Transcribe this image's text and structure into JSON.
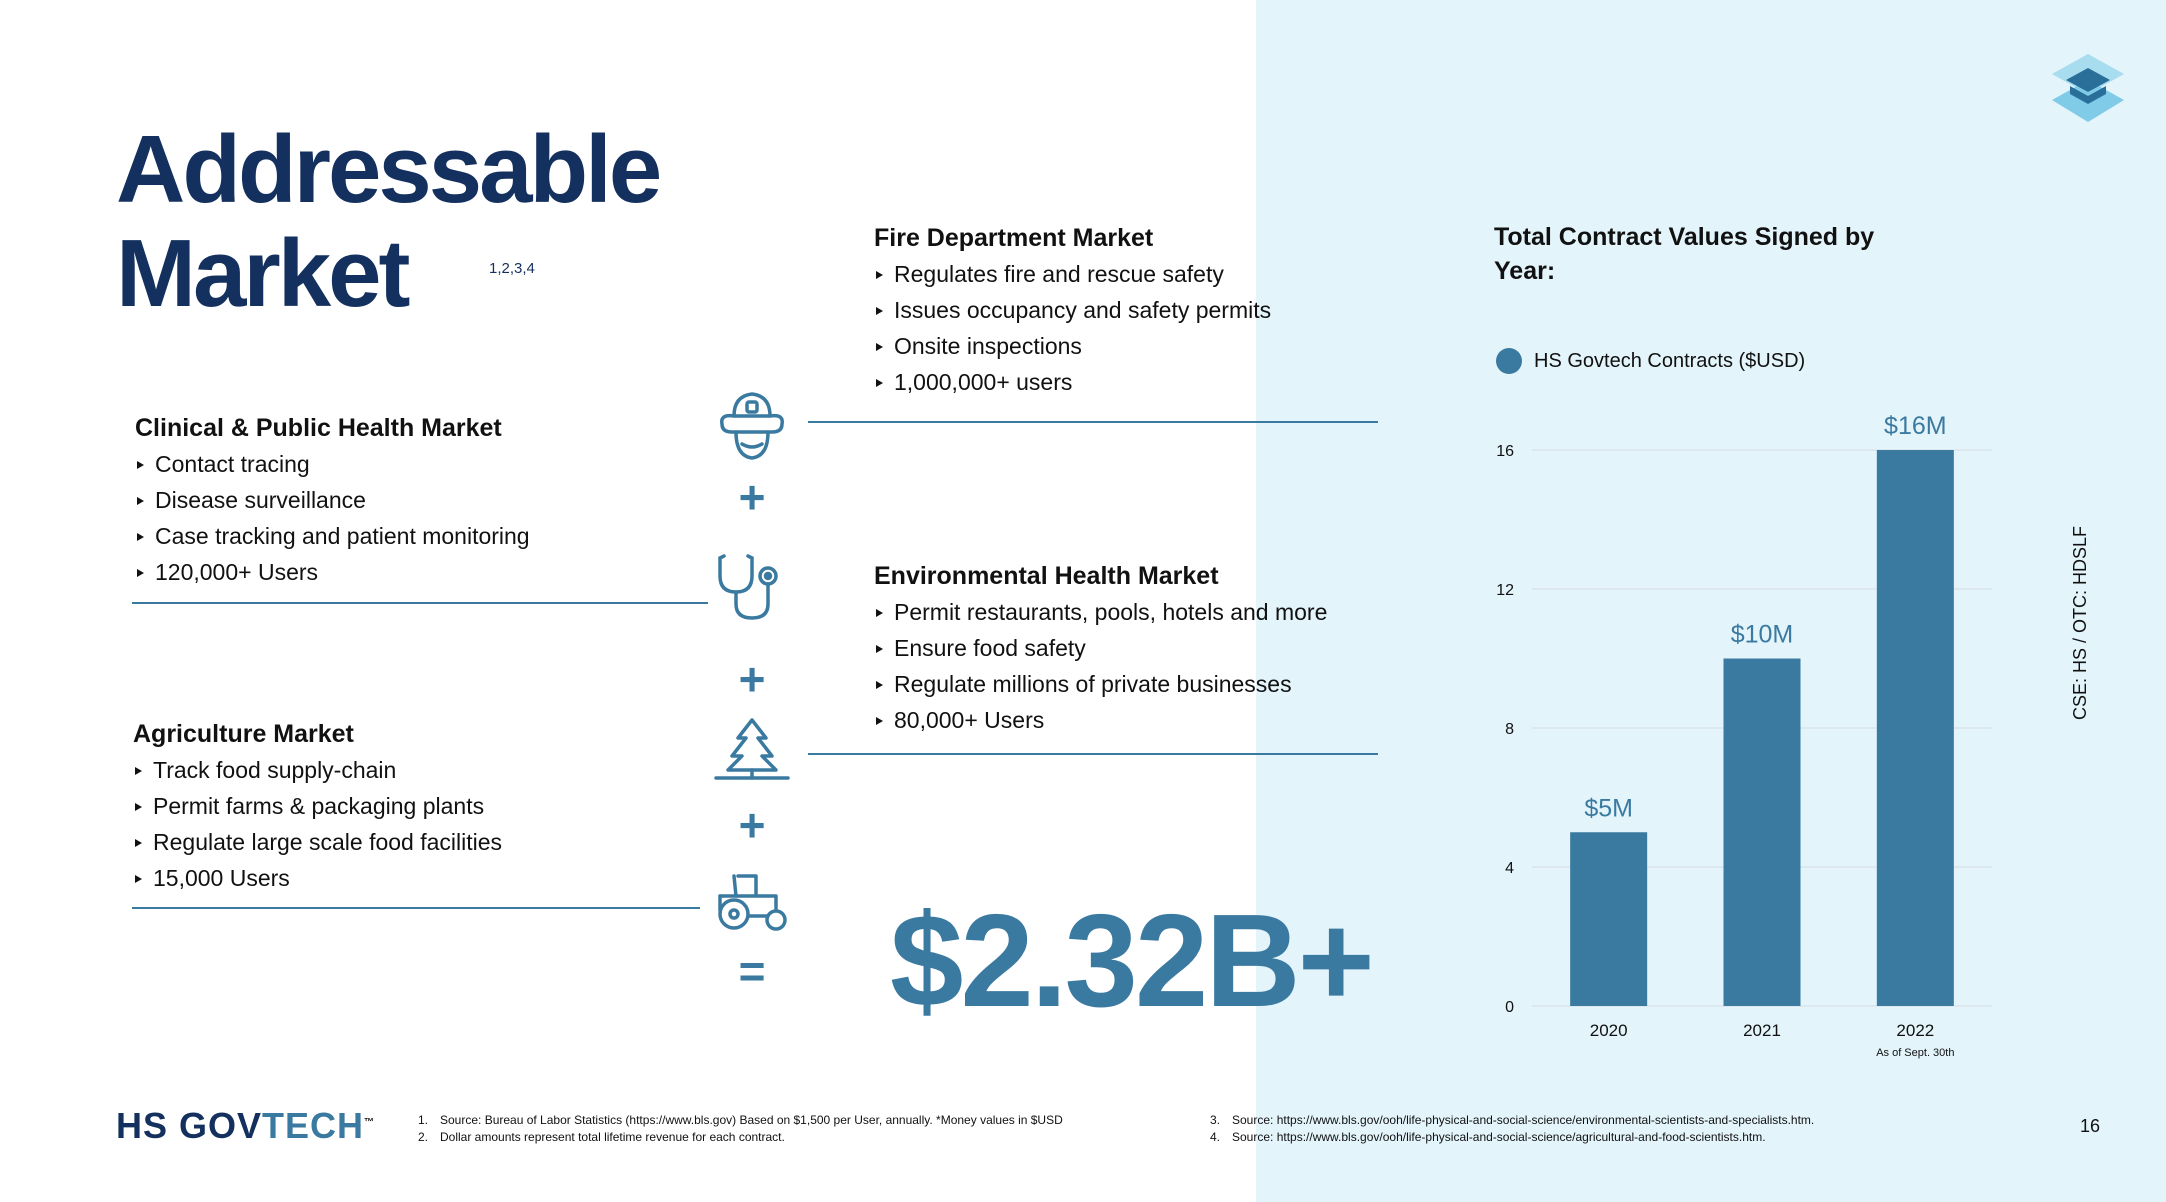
{
  "title": {
    "line1": "Addressable",
    "line2": "Market",
    "sup": "1,2,3,4"
  },
  "markets": {
    "clinical": {
      "heading": "Clinical & Public Health Market",
      "items": [
        "Contact tracing",
        "Disease surveillance",
        "Case tracking and patient  monitoring",
        "120,000+ Users"
      ]
    },
    "agriculture": {
      "heading": "Agriculture Market",
      "items": [
        "Track food supply-chain",
        "Permit farms & packaging plants",
        "Regulate large scale food facilities",
        "15,000 Users"
      ]
    },
    "fire": {
      "heading": "Fire Department Market",
      "items": [
        "Regulates fire and rescue safety",
        "Issues occupancy and safety permits",
        "Onsite inspections",
        "1,000,000+ users"
      ]
    },
    "environmental": {
      "heading": "Environmental Health Market",
      "items": [
        "Permit restaurants, pools, hotels and more",
        "Ensure food safety",
        "Regulate millions of private businesses",
        "80,000+ Users"
      ]
    }
  },
  "operators": {
    "plus": "+",
    "equals": "="
  },
  "icons": [
    "firefighter-icon",
    "stethoscope-icon",
    "tree-icon",
    "tractor-icon",
    "hs-govtech-logo-icon"
  ],
  "total_value": "$2.32B+",
  "chart_data": {
    "type": "bar",
    "title": "Total Contract Values Signed by Year:",
    "legend": [
      "HS Govtech Contracts ($USD)"
    ],
    "legend_placement": "top-left",
    "categories": [
      "2020",
      "2021",
      "2022"
    ],
    "category_notes": [
      "",
      "",
      "As of Sept. 30th"
    ],
    "series": [
      {
        "name": "HS Govtech Contracts ($USD)",
        "values": [
          5,
          10,
          16
        ],
        "data_labels": [
          "$5M",
          "$10M",
          "$16M"
        ]
      }
    ],
    "yticks": [
      "0",
      "4",
      "8",
      "12",
      "16"
    ],
    "ylim": [
      0,
      16
    ],
    "grid": true,
    "color": "#3b7aa0"
  },
  "side_label": "CSE: HS   /  OTC: HDSLF",
  "logo": {
    "hs": "HS ",
    "gov": "GOV",
    "tech": "TECH",
    "tm": "™"
  },
  "footnotes_left": [
    {
      "num": "1.",
      "text": "Source: Bureau of Labor Statistics (https://www.bls.gov)  Based on $1,500 per User, annually. *Money values in $USD"
    },
    {
      "num": "2.",
      "text": "Dollar amounts represent total lifetime revenue for each contract."
    }
  ],
  "footnotes_right": [
    {
      "num": "3.",
      "text": "Source: https://www.bls.gov/ooh/life-physical-and-social-science/environmental-scientists-and-specialists.htm."
    },
    {
      "num": "4.",
      "text": "Source: https://www.bls.gov/ooh/life-physical-and-social-science/agricultural-and-food-scientists.htm."
    }
  ],
  "page_number": "16"
}
